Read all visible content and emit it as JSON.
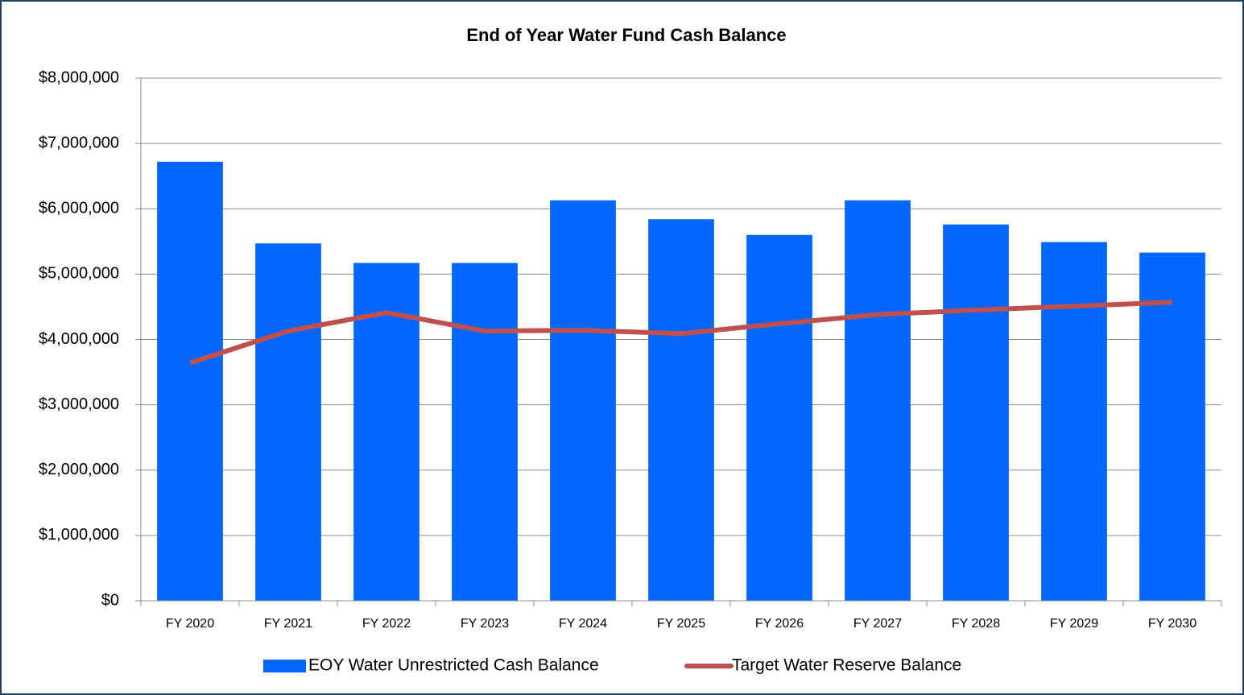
{
  "chart_data": {
    "type": "bar",
    "title": "End of Year Water Fund Cash Balance",
    "categories": [
      "FY 2020",
      "FY 2021",
      "FY 2022",
      "FY 2023",
      "FY 2024",
      "FY 2025",
      "FY 2026",
      "FY 2027",
      "FY 2028",
      "FY 2029",
      "FY 2030"
    ],
    "series": [
      {
        "name": "EOY Water Unrestricted Cash Balance",
        "type": "bar",
        "color": "#0066ff",
        "values": [
          6720000,
          5470000,
          5170000,
          5170000,
          6130000,
          5840000,
          5600000,
          6130000,
          5760000,
          5490000,
          5330000
        ]
      },
      {
        "name": "Target Water Reserve Balance",
        "type": "line",
        "color": "#c0504d",
        "values": [
          3640000,
          4130000,
          4410000,
          4130000,
          4140000,
          4090000,
          4240000,
          4380000,
          4450000,
          4510000,
          4570000
        ]
      }
    ],
    "ylim": [
      0,
      8000000
    ],
    "yticks": [
      {
        "value": 0,
        "label": "$0"
      },
      {
        "value": 1000000,
        "label": "$1,000,000"
      },
      {
        "value": 2000000,
        "label": "$2,000,000"
      },
      {
        "value": 3000000,
        "label": "$3,000,000"
      },
      {
        "value": 4000000,
        "label": "$4,000,000"
      },
      {
        "value": 5000000,
        "label": "$5,000,000"
      },
      {
        "value": 6000000,
        "label": "$6,000,000"
      },
      {
        "value": 7000000,
        "label": "$7,000,000"
      },
      {
        "value": 8000000,
        "label": "$8,000,000"
      }
    ],
    "grid": true,
    "legend": "bottom"
  }
}
